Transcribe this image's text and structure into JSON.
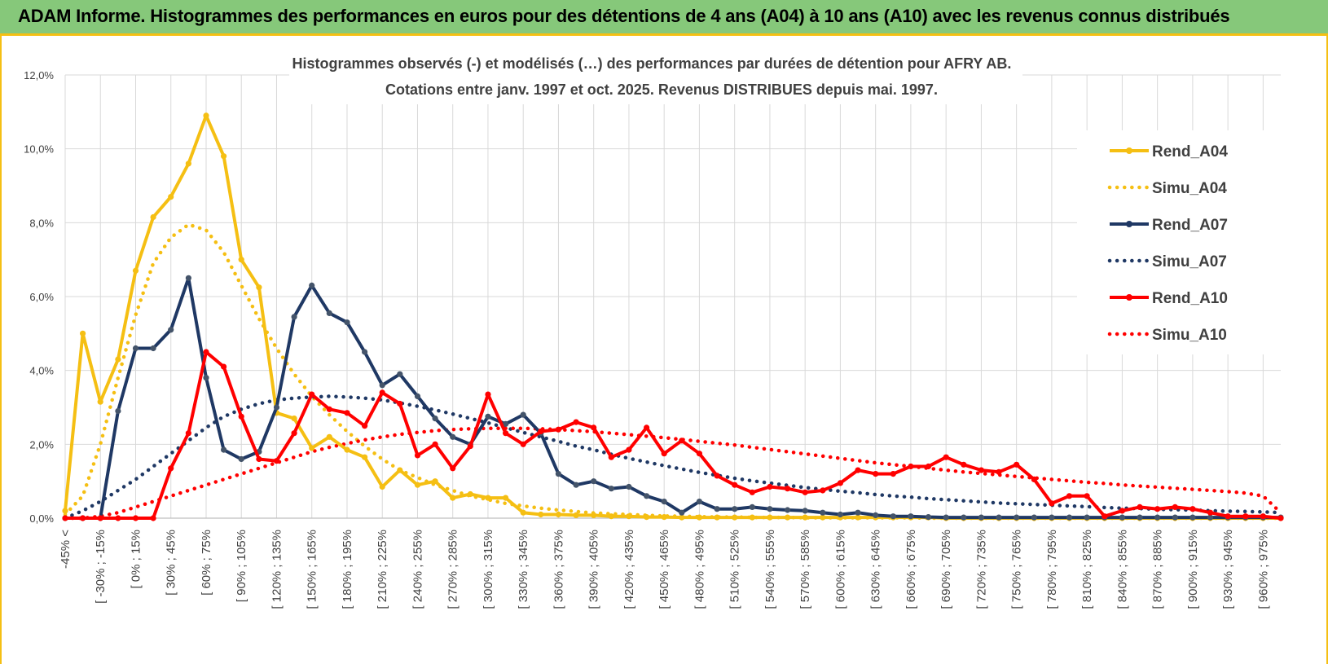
{
  "header": {
    "title": "ADAM Informe. Histogrammes des performances en euros pour des détentions de 4 ans (A04) à 10 ans (A10) avec les revenus connus distribués"
  },
  "chart_data": {
    "type": "line",
    "title": "Histogrammes observés (-) et modélisés (…) des performances par durées de détention pour AFRY AB.",
    "subtitle": "Cotations entre janv. 1997 et oct. 2025.  Revenus DISTRIBUES depuis mai. 1997.",
    "xlabel": "",
    "ylabel": "",
    "ylim": [
      0,
      12
    ],
    "y_ticks": [
      "0,0%",
      "2,0%",
      "4,0%",
      "6,0%",
      "8,0%",
      "10,0%",
      "12,0%"
    ],
    "grid": true,
    "legend_position": "right",
    "x_tick_labels": [
      "-45% <",
      "[ -30% ; -15%",
      "[ 0% ; 15%",
      "[ 30% ; 45%",
      "[ 60% ; 75%",
      "[ 90% ; 105%",
      "[ 120% ; 135%",
      "[ 150% ; 165%",
      "[ 180% ; 195%",
      "[ 210% ; 225%",
      "[ 240% ; 255%",
      "[ 270% ; 285%",
      "[ 300% ; 315%",
      "[ 330% ; 345%",
      "[ 360% ; 375%",
      "[ 390% ; 405%",
      "[ 420% ; 435%",
      "[ 450% ; 465%",
      "[ 480% ; 495%",
      "[ 510% ; 525%",
      "[ 540% ; 555%",
      "[ 570% ; 585%",
      "[ 600% ; 615%",
      "[ 630% ; 645%",
      "[ 660% ; 675%",
      "[ 690% ; 705%",
      "[ 720% ; 735%",
      "[ 750% ; 765%",
      "[ 780% ; 795%",
      "[ 810% ; 825%",
      "[ 840% ; 855%",
      "[ 870% ; 885%",
      "[ 900% ; 915%",
      "[ 930% ; 945%",
      "[ 960% ; 975%"
    ],
    "n_categories": 70,
    "series": [
      {
        "name": "Rend_A04",
        "color": "#f5bf13",
        "style": "solid-markers",
        "values": [
          0.2,
          5.0,
          3.15,
          4.3,
          6.7,
          8.15,
          8.7,
          9.6,
          10.9,
          9.8,
          7.0,
          6.25,
          2.85,
          2.7,
          1.9,
          2.2,
          1.85,
          1.65,
          0.85,
          1.3,
          0.9,
          1.0,
          0.55,
          0.65,
          0.55,
          0.55,
          0.15,
          0.1,
          0.1,
          0.08,
          0.08,
          0.05,
          0.05,
          0.03,
          0.03,
          0.02,
          0.02,
          0.02,
          0.02,
          0.02,
          0.02,
          0.02,
          0.02,
          0.02,
          0.02,
          0.02,
          0.02,
          0.02,
          0.02,
          0.02,
          0,
          0,
          0,
          0,
          0,
          0,
          0,
          0,
          0,
          0,
          0,
          0,
          0,
          0,
          0,
          0,
          0,
          0,
          0,
          0
        ]
      },
      {
        "name": "Simu_A04",
        "color": "#f5bf13",
        "style": "dotted",
        "values": [
          0.1,
          0.6,
          2.0,
          3.8,
          5.5,
          6.9,
          7.6,
          7.95,
          7.8,
          7.2,
          6.3,
          5.4,
          4.6,
          3.9,
          3.3,
          2.8,
          2.35,
          1.95,
          1.6,
          1.3,
          1.1,
          0.9,
          0.75,
          0.6,
          0.5,
          0.4,
          0.33,
          0.27,
          0.22,
          0.18,
          0.14,
          0.12,
          0.1,
          0.08,
          0.06,
          0.05,
          0.04,
          0.03,
          0.03,
          0.02,
          0.02,
          0.02,
          0.01,
          0.01,
          0.01,
          0.01,
          0.01,
          0.01,
          0.01,
          0,
          0,
          0,
          0,
          0,
          0,
          0,
          0,
          0,
          0,
          0,
          0,
          0,
          0,
          0,
          0,
          0,
          0,
          0,
          0,
          0
        ]
      },
      {
        "name": "Rend_A07",
        "color": "#1f3864",
        "style": "solid-markers",
        "values": [
          0,
          0,
          0,
          2.9,
          4.6,
          4.6,
          5.1,
          6.5,
          3.8,
          1.85,
          1.6,
          1.8,
          3.0,
          5.45,
          6.3,
          5.55,
          5.3,
          4.5,
          3.6,
          3.9,
          3.3,
          2.7,
          2.2,
          2.0,
          2.75,
          2.55,
          2.8,
          2.3,
          1.2,
          0.9,
          1.0,
          0.8,
          0.85,
          0.6,
          0.45,
          0.15,
          0.45,
          0.25,
          0.25,
          0.3,
          0.25,
          0.22,
          0.2,
          0.15,
          0.1,
          0.15,
          0.08,
          0.05,
          0.05,
          0.03,
          0.02,
          0.02,
          0.02,
          0.02,
          0.02,
          0.02,
          0.02,
          0.02,
          0.02,
          0.02,
          0.02,
          0.02,
          0.02,
          0.02,
          0.02,
          0.02,
          0.02,
          0.02,
          0.02,
          0.02
        ]
      },
      {
        "name": "Simu_A07",
        "color": "#1f3864",
        "style": "dotted",
        "values": [
          0,
          0.2,
          0.45,
          0.75,
          1.05,
          1.4,
          1.75,
          2.1,
          2.45,
          2.75,
          2.95,
          3.1,
          3.2,
          3.25,
          3.28,
          3.3,
          3.28,
          3.25,
          3.2,
          3.12,
          3.03,
          2.93,
          2.82,
          2.7,
          2.58,
          2.45,
          2.32,
          2.2,
          2.08,
          1.95,
          1.85,
          1.73,
          1.62,
          1.52,
          1.42,
          1.33,
          1.24,
          1.16,
          1.08,
          1.01,
          0.95,
          0.89,
          0.83,
          0.78,
          0.73,
          0.69,
          0.64,
          0.6,
          0.57,
          0.53,
          0.5,
          0.47,
          0.44,
          0.41,
          0.39,
          0.37,
          0.35,
          0.33,
          0.31,
          0.29,
          0.27,
          0.26,
          0.24,
          0.23,
          0.22,
          0.2,
          0.19,
          0.18,
          0.17,
          0.15
        ]
      },
      {
        "name": "Rend_A10",
        "color": "#ff0000",
        "style": "solid-markers",
        "values": [
          0,
          0,
          0,
          0,
          0,
          0,
          1.35,
          2.3,
          4.5,
          4.1,
          2.75,
          1.6,
          1.55,
          2.3,
          3.35,
          2.95,
          2.85,
          2.5,
          3.4,
          3.1,
          1.7,
          2.0,
          1.35,
          1.95,
          3.35,
          2.3,
          2.0,
          2.35,
          2.4,
          2.6,
          2.45,
          1.65,
          1.85,
          2.45,
          1.75,
          2.1,
          1.75,
          1.15,
          0.9,
          0.7,
          0.85,
          0.8,
          0.7,
          0.75,
          0.95,
          1.3,
          1.2,
          1.2,
          1.4,
          1.4,
          1.65,
          1.45,
          1.3,
          1.25,
          1.45,
          1.05,
          0.4,
          0.6,
          0.6,
          0.05,
          0.2,
          0.3,
          0.25,
          0.3,
          0.25,
          0.15,
          0.05,
          0.05,
          0.05,
          0.0
        ]
      },
      {
        "name": "Simu_A10",
        "color": "#ff0000",
        "style": "dotted",
        "values": [
          0,
          0,
          0.05,
          0.15,
          0.3,
          0.45,
          0.6,
          0.75,
          0.9,
          1.05,
          1.2,
          1.35,
          1.5,
          1.65,
          1.8,
          1.92,
          2.02,
          2.12,
          2.2,
          2.27,
          2.32,
          2.37,
          2.4,
          2.42,
          2.43,
          2.43,
          2.43,
          2.42,
          2.4,
          2.37,
          2.34,
          2.3,
          2.26,
          2.22,
          2.18,
          2.13,
          2.08,
          2.03,
          1.98,
          1.92,
          1.86,
          1.8,
          1.74,
          1.68,
          1.62,
          1.56,
          1.5,
          1.45,
          1.4,
          1.35,
          1.3,
          1.25,
          1.21,
          1.17,
          1.13,
          1.09,
          1.05,
          1.01,
          0.97,
          0.94,
          0.9,
          0.87,
          0.84,
          0.81,
          0.78,
          0.75,
          0.72,
          0.68,
          0.6,
          0.15
        ]
      }
    ]
  }
}
